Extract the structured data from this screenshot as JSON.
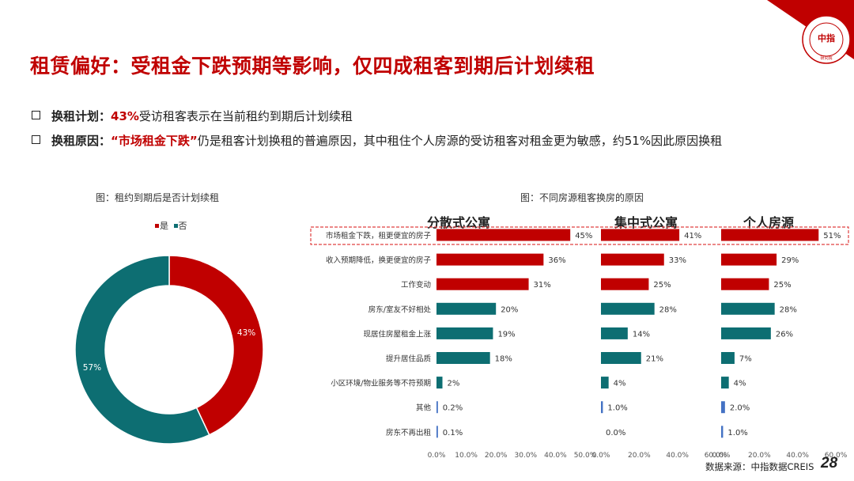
{
  "title": "租赁偏好：受租金下跌预期等影响，仅四成租客到期后计划续租",
  "bullets": [
    {
      "label": "换租计划：",
      "highlight": "43%",
      "text": "受访租客表示在当前租约到期后计划续租"
    },
    {
      "label": "换租原因：",
      "highlight": "“市场租金下跌”",
      "text": "仍是租客计划换租的普遍原因，其中租住个人房源的受访租客对租金更为敏感，约51%因此原因换租"
    }
  ],
  "logo": {
    "ring_text": "CHINA INDEX ACADEMY",
    "center": "中指",
    "bottom": "研究院"
  },
  "source": "数据来源：中指数据CREIS",
  "page_number": "28",
  "colors": {
    "red": "#c00000",
    "teal": "#0d6e72",
    "blue": "#4472c4",
    "highlight_box": "#e04040"
  },
  "chart_data": [
    {
      "type": "pie",
      "donut": true,
      "title": "图：租约到期后是否计划续租",
      "legend_position": "top",
      "slices": [
        {
          "label": "是",
          "value": 43,
          "display": "43%",
          "color": "#c00000"
        },
        {
          "label": "否",
          "value": 57,
          "display": "57%",
          "color": "#0d6e72"
        }
      ]
    },
    {
      "type": "bar",
      "orientation": "horizontal",
      "title": "图：不同房源租客换房的原因",
      "categories": [
        "市场租金下跌，租更便宜的房子",
        "收入预期降低，换更便宜的房子",
        "工作变动",
        "房东/室友不好相处",
        "现居住房屋租金上涨",
        "提升居住品质",
        "小区环境/物业服务等不符预期",
        "其他",
        "房东不再出租"
      ],
      "highlighted_category_index": 0,
      "panels": [
        {
          "name": "分散式公寓",
          "values": [
            45,
            36,
            31,
            20,
            19,
            18,
            2,
            0.2,
            0.1
          ],
          "labels": [
            "45%",
            "36%",
            "31%",
            "20%",
            "19%",
            "18%",
            "2%",
            "0.2%",
            "0.1%"
          ],
          "xlim": [
            0,
            50
          ],
          "ticks": [
            "0.0%",
            "10.0%",
            "20.0%",
            "30.0%",
            "40.0%",
            "50.0%"
          ],
          "tick_values": [
            0,
            10,
            20,
            30,
            40,
            50
          ]
        },
        {
          "name": "集中式公寓",
          "values": [
            41,
            33,
            25,
            28,
            14,
            21,
            4,
            1.0,
            0.0
          ],
          "labels": [
            "41%",
            "33%",
            "25%",
            "28%",
            "14%",
            "21%",
            "4%",
            "1.0%",
            "0.0%"
          ],
          "xlim": [
            0,
            60
          ],
          "ticks": [
            "0.0%",
            "20.0%",
            "40.0%",
            "60.0%"
          ],
          "tick_values": [
            0,
            20,
            40,
            60
          ]
        },
        {
          "name": "个人房源",
          "values": [
            51,
            29,
            25,
            28,
            26,
            7,
            4,
            2.0,
            1.0
          ],
          "labels": [
            "51%",
            "29%",
            "25%",
            "28%",
            "26%",
            "7%",
            "4%",
            "2.0%",
            "1.0%"
          ],
          "xlim": [
            0,
            60
          ],
          "ticks": [
            "0.0%",
            "20.0%",
            "40.0%",
            "60.0%"
          ],
          "tick_values": [
            0,
            20,
            40,
            60
          ]
        }
      ],
      "bar_colors": [
        "#c00000",
        "#c00000",
        "#c00000",
        "#0d6e72",
        "#0d6e72",
        "#0d6e72",
        "#0d6e72",
        "#4472c4",
        "#4472c4"
      ]
    }
  ]
}
